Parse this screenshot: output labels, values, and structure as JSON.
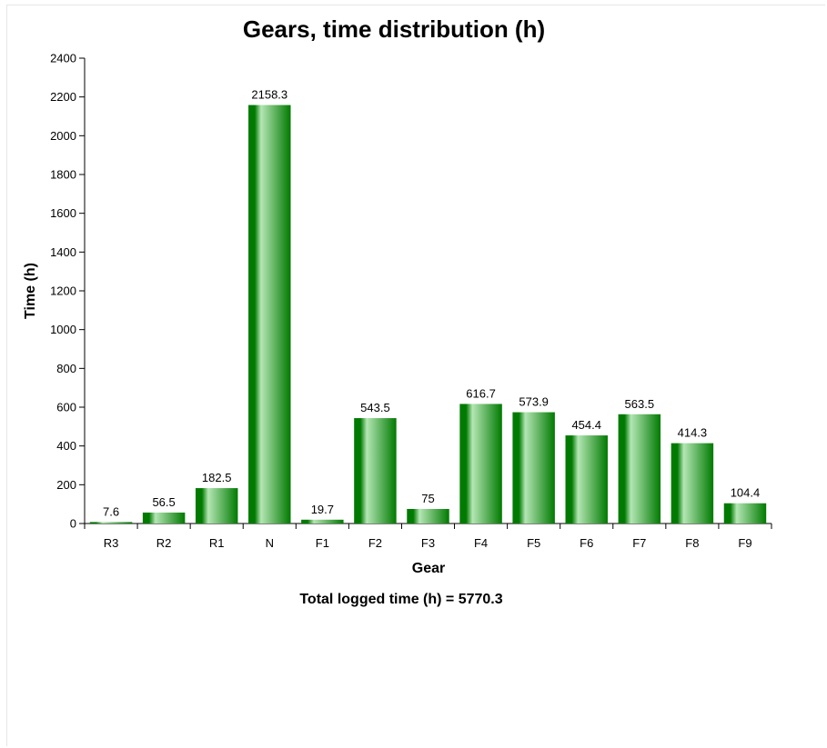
{
  "chart_data": {
    "type": "bar",
    "title": "Gears, time distribution (h)",
    "xlabel": "Gear",
    "ylabel": "Time (h)",
    "categories": [
      "R3",
      "R2",
      "R1",
      "N",
      "F1",
      "F2",
      "F3",
      "F4",
      "F5",
      "F6",
      "F7",
      "F8",
      "F9"
    ],
    "values": [
      7.6,
      56.5,
      182.5,
      2158.3,
      19.7,
      543.5,
      75,
      616.7,
      573.9,
      454.4,
      563.5,
      414.3,
      104.4
    ],
    "value_labels": [
      "7.6",
      "56.5",
      "182.5",
      "2158.3",
      "19.7",
      "543.5",
      "75",
      "616.7",
      "573.9",
      "454.4",
      "563.5",
      "414.3",
      "104.4"
    ],
    "y_ticks": [
      0,
      200,
      400,
      600,
      800,
      1000,
      1200,
      1400,
      1600,
      1800,
      2000,
      2200,
      2400
    ],
    "ylim": [
      0,
      2400
    ],
    "grid": false,
    "legend": "none",
    "colors": {
      "bar_dark": "#007a00",
      "bar_light": "#b4e6b4"
    },
    "footer": "Total logged time (h) = 5770.3"
  }
}
